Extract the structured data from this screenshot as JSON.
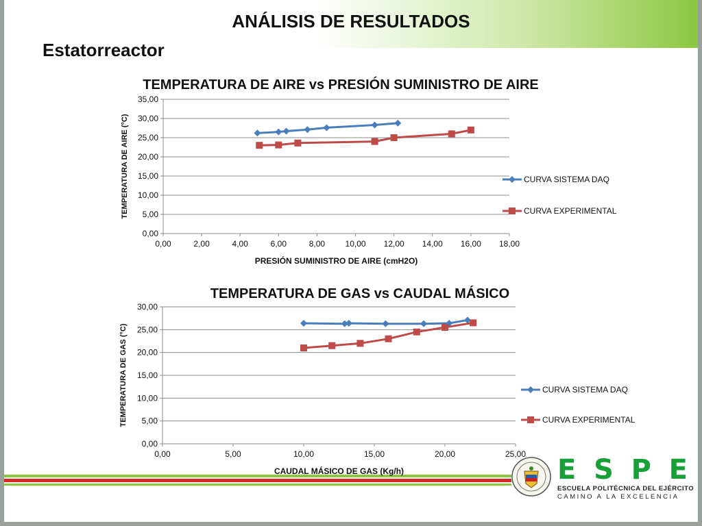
{
  "slide": {
    "title": "ANÁLISIS DE RESULTADOS",
    "subtitle": "Estatorreactor",
    "colors": {
      "green": "#8cc63f",
      "red": "#d62828",
      "daq": "#4a7ebb",
      "experimental": "#be4b48"
    }
  },
  "logo": {
    "letters": [
      "E",
      "S",
      "P",
      "E"
    ],
    "line1": "ESCUELA POLITÉCNICA DEL EJÉRCITO",
    "line2": "CAMINO A LA EXCELENCIA"
  },
  "chart_data": [
    {
      "type": "line",
      "title": "TEMPERATURA DE AIRE vs PRESIÓN SUMINISTRO DE AIRE",
      "xlabel": "PRESIÓN SUMINISTRO DE AIRE (cmH2O)",
      "ylabel": "TEMPERATURA DE AIRE (°C)",
      "xlim": [
        0,
        18
      ],
      "ylim": [
        0,
        35
      ],
      "xticks": [
        "0,00",
        "2,00",
        "4,00",
        "6,00",
        "8,00",
        "10,00",
        "12,00",
        "14,00",
        "16,00",
        "18,00"
      ],
      "yticks": [
        "0,00",
        "5,00",
        "10,00",
        "15,00",
        "20,00",
        "25,00",
        "30,00",
        "35,00"
      ],
      "grid": "horizontal",
      "legend_position": "right",
      "series": [
        {
          "name": "CURVA SISTEMA DAQ",
          "marker": "diamond",
          "color": "#4a7ebb",
          "x": [
            4.9,
            6.0,
            6.4,
            7.5,
            8.5,
            11.0,
            12.2
          ],
          "y": [
            26.2,
            26.5,
            26.7,
            27.1,
            27.6,
            28.3,
            28.8
          ]
        },
        {
          "name": "CURVA EXPERIMENTAL",
          "marker": "square",
          "color": "#be4b48",
          "x": [
            5.0,
            6.0,
            7.0,
            11.0,
            12.0,
            15.0,
            16.0
          ],
          "y": [
            23.0,
            23.1,
            23.6,
            24.0,
            25.0,
            26.0,
            27.0
          ]
        }
      ]
    },
    {
      "type": "line",
      "title": "TEMPERATURA DE GAS vs CAUDAL MÁSICO",
      "xlabel": "CAUDAL MÁSICO DE GAS (Kg/h)",
      "ylabel": "TEMPERATURA DE GAS (°C)",
      "xlim": [
        0,
        25
      ],
      "ylim": [
        0,
        30
      ],
      "xticks": [
        "0,00",
        "5,00",
        "10,00",
        "15,00",
        "20,00",
        "25,00"
      ],
      "yticks": [
        "0,00",
        "5,00",
        "10,00",
        "15,00",
        "20,00",
        "25,00",
        "30,00"
      ],
      "grid": "horizontal",
      "legend_position": "right",
      "series": [
        {
          "name": "CURVA SISTEMA DAQ",
          "marker": "diamond",
          "color": "#4a7ebb",
          "x": [
            10.0,
            12.9,
            13.2,
            15.8,
            18.5,
            20.3,
            21.6
          ],
          "y": [
            26.4,
            26.3,
            26.4,
            26.3,
            26.3,
            26.4,
            27.1
          ]
        },
        {
          "name": "CURVA EXPERIMENTAL",
          "marker": "square",
          "color": "#be4b48",
          "x": [
            10.0,
            12.0,
            14.0,
            16.0,
            18.0,
            20.0,
            22.0
          ],
          "y": [
            21.0,
            21.5,
            22.0,
            23.0,
            24.5,
            25.5,
            26.5
          ]
        }
      ]
    }
  ]
}
